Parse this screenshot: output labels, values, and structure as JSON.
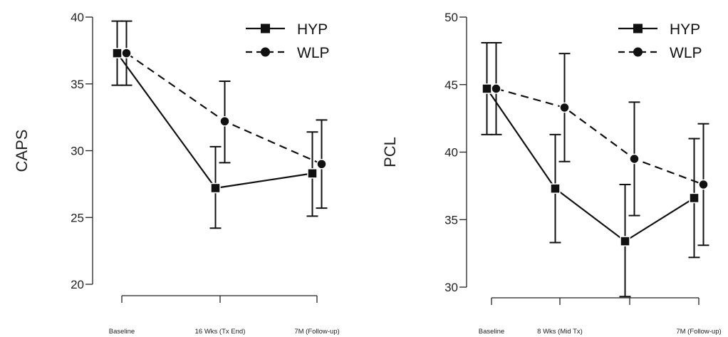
{
  "chart_data": [
    {
      "type": "line",
      "ylabel": "CAPS",
      "xlabel": "",
      "ylim": [
        20,
        40
      ],
      "yticks": [
        20,
        25,
        30,
        35,
        40
      ],
      "categories": [
        "Baseline",
        "16 Wks (Tx End)",
        "7M (Follow-up)"
      ],
      "legend": "top-right",
      "series": [
        {
          "name": "HYP",
          "style": "solid",
          "marker": "square",
          "values": [
            37.3,
            27.2,
            28.3
          ],
          "err_low": [
            34.9,
            24.2,
            25.1
          ],
          "err_high": [
            39.7,
            30.3,
            31.4
          ]
        },
        {
          "name": "WLP",
          "style": "dashed",
          "marker": "circle",
          "values": [
            37.3,
            32.2,
            29.0
          ],
          "err_low": [
            34.9,
            29.1,
            25.7
          ],
          "err_high": [
            39.7,
            35.2,
            32.3
          ]
        }
      ]
    },
    {
      "type": "line",
      "ylabel": "PCL",
      "xlabel": "",
      "ylim": [
        30,
        50
      ],
      "yticks": [
        30,
        35,
        40,
        45,
        50
      ],
      "categories": [
        "Baseline",
        "8 Wks (Mid Tx)",
        "",
        "7M (Follow-up)"
      ],
      "legend": "top-right",
      "series": [
        {
          "name": "HYP",
          "style": "solid",
          "marker": "square",
          "values": [
            44.7,
            37.3,
            33.4,
            36.6
          ],
          "err_low": [
            41.3,
            33.3,
            29.3,
            32.2
          ],
          "err_high": [
            48.1,
            41.3,
            37.6,
            41.0
          ]
        },
        {
          "name": "WLP",
          "style": "dashed",
          "marker": "circle",
          "values": [
            44.7,
            43.3,
            39.5,
            37.6
          ],
          "err_low": [
            41.3,
            39.3,
            35.3,
            33.1
          ],
          "err_high": [
            48.1,
            47.3,
            43.7,
            42.1
          ]
        }
      ]
    }
  ]
}
